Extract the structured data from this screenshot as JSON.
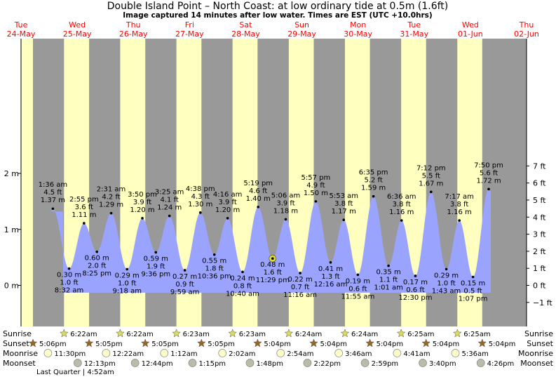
{
  "title": "Double Island Point – North Coast: at low  ordinary tide at 0.5m (1.6ft)",
  "subtitle": "Image captured 14 minutes after low water. Times are EST (UTC +10.0hrs)",
  "colors": {
    "night": "#999999",
    "day": "#ffffc0",
    "water": "#9aa4ff",
    "day_label": "#ff0000",
    "marker": "#dddd33"
  },
  "chart_data": {
    "type": "area",
    "title": "Double Island Point – North Coast: at low  ordinary tide at 0.5m (1.6ft)",
    "xlabel": "",
    "ylabel_left": "m",
    "ylabel_right": "ft",
    "ylim": [
      -0.27,
      2.18
    ],
    "time_range": [
      "2022-05-24 12:00",
      "2022-06-02 12:00"
    ],
    "grid": false,
    "days": [
      {
        "dow": "Tue",
        "date": "24-May"
      },
      {
        "dow": "Wed",
        "date": "25-May"
      },
      {
        "dow": "Thu",
        "date": "26-May"
      },
      {
        "dow": "Fri",
        "date": "27-May"
      },
      {
        "dow": "Sat",
        "date": "28-May"
      },
      {
        "dow": "Sun",
        "date": "29-May"
      },
      {
        "dow": "Mon",
        "date": "30-May"
      },
      {
        "dow": "Tue",
        "date": "31-May"
      },
      {
        "dow": "Wed",
        "date": "01-Jun"
      },
      {
        "dow": "Thu",
        "date": "02-Jun"
      }
    ],
    "y_ticks_m": [
      {
        "v": 0,
        "label": "0 m"
      },
      {
        "v": 1,
        "label": "1 m"
      },
      {
        "v": 2,
        "label": "2 m"
      }
    ],
    "y_ticks_ft": [
      -1,
      0,
      1,
      2,
      3,
      4,
      5,
      6,
      7
    ],
    "y_ticks_ft_labels": [
      "−1 ft",
      "0 ft",
      "1 ft",
      "2 ft",
      "3 ft",
      "4 ft",
      "5 ft",
      "6 ft",
      "7 ft"
    ],
    "tides": [
      {
        "t": "2022-05-25 01:36",
        "type": "high",
        "time": "1:36 am",
        "ft": "4.5 ft",
        "m": "1.37 m",
        "v": 1.37
      },
      {
        "t": "2022-05-25 08:32",
        "type": "low",
        "time": "8:32 am",
        "ft": "1.0 ft",
        "m": "0.30 m",
        "v": 0.3
      },
      {
        "t": "2022-05-25 14:55",
        "type": "high",
        "time": "2:55 pm",
        "ft": "3.6 ft",
        "m": "1.11 m",
        "v": 1.11
      },
      {
        "t": "2022-05-25 20:25",
        "type": "low",
        "time": "8:25 pm",
        "ft": "2.0 ft",
        "m": "0.60 m",
        "v": 0.6
      },
      {
        "t": "2022-05-26 02:31",
        "type": "high",
        "time": "2:31 am",
        "ft": "4.2 ft",
        "m": "1.29 m",
        "v": 1.29
      },
      {
        "t": "2022-05-26 09:18",
        "type": "low",
        "time": "9:18 am",
        "ft": "1.0 ft",
        "m": "0.29 m",
        "v": 0.29
      },
      {
        "t": "2022-05-26 15:50",
        "type": "high",
        "time": "3:50 pm",
        "ft": "3.9 ft",
        "m": "1.20 m",
        "v": 1.2
      },
      {
        "t": "2022-05-26 21:36",
        "type": "low",
        "time": "9:36 pm",
        "ft": "1.9 ft",
        "m": "0.59 m",
        "v": 0.59
      },
      {
        "t": "2022-05-27 03:25",
        "type": "high",
        "time": "3:25 am",
        "ft": "4.1 ft",
        "m": "1.24 m",
        "v": 1.24
      },
      {
        "t": "2022-05-27 09:59",
        "type": "low",
        "time": "9:59 am",
        "ft": "0.9 ft",
        "m": "0.27 m",
        "v": 0.27
      },
      {
        "t": "2022-05-27 16:38",
        "type": "high",
        "time": "4:38 pm",
        "ft": "4.3 ft",
        "m": "1.30 m",
        "v": 1.3
      },
      {
        "t": "2022-05-27 22:36",
        "type": "low",
        "time": "10:36 pm",
        "ft": "1.8 ft",
        "m": "0.55 m",
        "v": 0.55
      },
      {
        "t": "2022-05-28 04:16",
        "type": "high",
        "time": "4:16 am",
        "ft": "3.9 ft",
        "m": "1.20 m",
        "v": 1.2
      },
      {
        "t": "2022-05-28 10:40",
        "type": "low",
        "time": "10:40 am",
        "ft": "0.8 ft",
        "m": "0.24 m",
        "v": 0.24
      },
      {
        "t": "2022-05-28 17:19",
        "type": "high",
        "time": "5:19 pm",
        "ft": "4.6 ft",
        "m": "1.40 m",
        "v": 1.4
      },
      {
        "t": "2022-05-28 23:29",
        "type": "low",
        "time": "11:29 pm",
        "ft": "1.6 ft",
        "m": "0.48 m",
        "v": 0.48,
        "current": true
      },
      {
        "t": "2022-05-29 05:06",
        "type": "high",
        "time": "5:06 am",
        "ft": "3.9 ft",
        "m": "1.18 m",
        "v": 1.18
      },
      {
        "t": "2022-05-29 11:16",
        "type": "low",
        "time": "11:16 am",
        "ft": "0.7 ft",
        "m": "0.22 m",
        "v": 0.22
      },
      {
        "t": "2022-05-29 17:57",
        "type": "high",
        "time": "5:57 pm",
        "ft": "4.9 ft",
        "m": "1.50 m",
        "v": 1.5
      },
      {
        "t": "2022-05-30 00:16",
        "type": "low",
        "time": "12:16 am",
        "ft": "1.3 ft",
        "m": "0.41 m",
        "v": 0.41
      },
      {
        "t": "2022-05-30 05:53",
        "type": "high",
        "time": "5:53 am",
        "ft": "3.8 ft",
        "m": "1.17 m",
        "v": 1.17
      },
      {
        "t": "2022-05-30 11:55",
        "type": "low",
        "time": "11:55 am",
        "ft": "0.6 ft",
        "m": "0.19 m",
        "v": 0.19
      },
      {
        "t": "2022-05-30 18:35",
        "type": "high",
        "time": "6:35 pm",
        "ft": "5.2 ft",
        "m": "1.59 m",
        "v": 1.59
      },
      {
        "t": "2022-05-31 01:01",
        "type": "low",
        "time": "1:01 am",
        "ft": "1.1 ft",
        "m": "0.35 m",
        "v": 0.35
      },
      {
        "t": "2022-05-31 06:36",
        "type": "high",
        "time": "6:36 am",
        "ft": "3.8 ft",
        "m": "1.16 m",
        "v": 1.16
      },
      {
        "t": "2022-05-31 12:30",
        "type": "low",
        "time": "12:30 pm",
        "ft": "0.6 ft",
        "m": "0.17 m",
        "v": 0.17
      },
      {
        "t": "2022-05-31 19:12",
        "type": "high",
        "time": "7:12 pm",
        "ft": "5.5 ft",
        "m": "1.67 m",
        "v": 1.67
      },
      {
        "t": "2022-06-01 01:43",
        "type": "low",
        "time": "1:43 am",
        "ft": "1.0 ft",
        "m": "0.29 m",
        "v": 0.29
      },
      {
        "t": "2022-06-01 07:17",
        "type": "high",
        "time": "7:17 am",
        "ft": "3.8 ft",
        "m": "1.16 m",
        "v": 1.16
      },
      {
        "t": "2022-06-01 13:07",
        "type": "low",
        "time": "1:07 pm",
        "ft": "0.5 ft",
        "m": "0.15 m",
        "v": 0.15
      },
      {
        "t": "2022-06-01 19:50",
        "type": "high",
        "time": "7:50 pm",
        "ft": "5.6 ft",
        "m": "1.72 m",
        "v": 1.72
      }
    ],
    "sunrise": [
      {
        "t": "2022-05-25 06:22",
        "label": "6:22am"
      },
      {
        "t": "2022-05-26 06:22",
        "label": "6:22am"
      },
      {
        "t": "2022-05-27 06:23",
        "label": "6:23am"
      },
      {
        "t": "2022-05-28 06:23",
        "label": "6:23am"
      },
      {
        "t": "2022-05-29 06:24",
        "label": "6:24am"
      },
      {
        "t": "2022-05-30 06:24",
        "label": "6:24am"
      },
      {
        "t": "2022-05-31 06:25",
        "label": "6:25am"
      },
      {
        "t": "2022-06-01 06:25",
        "label": "6:25am"
      }
    ],
    "sunset": [
      {
        "t": "2022-05-24 17:06",
        "label": "5:06pm"
      },
      {
        "t": "2022-05-25 17:05",
        "label": "5:05pm"
      },
      {
        "t": "2022-05-26 17:05",
        "label": "5:05pm"
      },
      {
        "t": "2022-05-27 17:05",
        "label": "5:05pm"
      },
      {
        "t": "2022-05-28 17:04",
        "label": "5:04pm"
      },
      {
        "t": "2022-05-29 17:04",
        "label": "5:04pm"
      },
      {
        "t": "2022-05-30 17:04",
        "label": "5:04pm"
      },
      {
        "t": "2022-05-31 17:04",
        "label": "5:04pm"
      },
      {
        "t": "2022-06-01 17:04",
        "label": "5:04pm"
      }
    ],
    "moonrise": [
      {
        "t": "2022-05-24 23:30",
        "label": "11:30pm"
      },
      {
        "t": "2022-05-26 00:22",
        "label": "12:22am"
      },
      {
        "t": "2022-05-27 01:12",
        "label": "1:12am"
      },
      {
        "t": "2022-05-28 02:02",
        "label": "2:02am"
      },
      {
        "t": "2022-05-29 02:54",
        "label": "2:54am"
      },
      {
        "t": "2022-05-30 03:46",
        "label": "3:46am"
      },
      {
        "t": "2022-05-31 04:41",
        "label": "4:41am"
      },
      {
        "t": "2022-06-01 05:36",
        "label": "5:36am"
      }
    ],
    "moonset": [
      {
        "t": "2022-05-25 12:13",
        "label": "12:13pm"
      },
      {
        "t": "2022-05-26 12:44",
        "label": "12:44pm"
      },
      {
        "t": "2022-05-27 13:15",
        "label": "1:15pm"
      },
      {
        "t": "2022-05-28 13:48",
        "label": "1:48pm"
      },
      {
        "t": "2022-05-29 14:22",
        "label": "2:22pm"
      },
      {
        "t": "2022-05-30 14:59",
        "label": "2:59pm"
      },
      {
        "t": "2022-05-31 15:40",
        "label": "3:40pm"
      },
      {
        "t": "2022-06-01 16:26",
        "label": "4:26pm"
      }
    ],
    "row_labels": {
      "sunrise": "Sunrise",
      "sunset": "Sunset",
      "moonrise": "Moonrise",
      "moonset": "Moonset"
    },
    "moon_phase": "Last Quarter | 4:52am"
  }
}
